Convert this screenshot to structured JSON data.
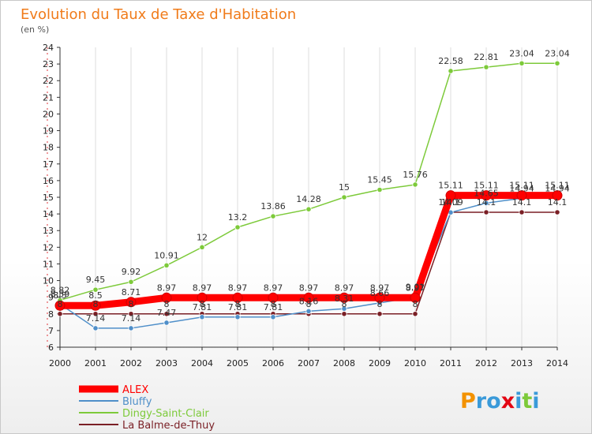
{
  "chart_data": {
    "type": "line",
    "title": "Evolution du Taux de Taxe d'Habitation",
    "subtitle": "(en %)",
    "x": [
      "2000",
      "2001",
      "2002",
      "2003",
      "2004",
      "2005",
      "2006",
      "2007",
      "2008",
      "2009",
      "2010",
      "2011",
      "2012",
      "2013",
      "2014"
    ],
    "ylim": [
      6,
      24
    ],
    "yticks": [
      6,
      7,
      8,
      9,
      10,
      11,
      12,
      13,
      14,
      15,
      16,
      17,
      18,
      19,
      20,
      21,
      22,
      23,
      24
    ],
    "grid": "vertical",
    "legend_position": "bottom-left",
    "series": [
      {
        "name": "ALEX",
        "color": "#ff0000",
        "values": [
          8.5,
          8.5,
          8.71,
          8.97,
          8.97,
          8.97,
          8.97,
          8.97,
          8.97,
          8.97,
          8.97,
          15.11,
          15.11,
          15.11,
          15.11
        ],
        "labels": [
          "8.5",
          "8.5",
          "8.71",
          "8.97",
          "8.97",
          "8.97",
          "8.97",
          "8.97",
          "8.97",
          "8.97",
          "8.97",
          "15.11",
          "15.11",
          "15.11",
          "15.11"
        ]
      },
      {
        "name": "Bluffy",
        "color": "#4f8fc9",
        "values": [
          8.59,
          7.14,
          7.14,
          7.47,
          7.81,
          7.81,
          7.81,
          8.16,
          8.31,
          8.66,
          9.01,
          14.09,
          14.65,
          14.94,
          14.94
        ],
        "labels": [
          "8.59",
          "7.14",
          "7.14",
          "7.47",
          "7.81",
          "7.81",
          "7.81",
          "8.16",
          "8.31",
          "8.66",
          "9.01",
          "14.09",
          "14.65",
          "14.94",
          "14.94"
        ]
      },
      {
        "name": "Dingy-Saint-Clair",
        "color": "#7dca3a",
        "values": [
          8.82,
          9.45,
          9.92,
          10.91,
          12,
          13.2,
          13.86,
          14.28,
          15,
          15.45,
          15.76,
          22.58,
          22.81,
          23.04,
          23.04
        ],
        "labels": [
          "8.82",
          "9.45",
          "9.92",
          "10.91",
          "12",
          "13.2",
          "13.86",
          "14.28",
          "15",
          "15.45",
          "15.76",
          "22.58",
          "22.81",
          "23.04",
          "23.04"
        ]
      },
      {
        "name": "La Balme-de-Thuy",
        "color": "#7a1f25",
        "values": [
          8,
          8,
          8,
          8,
          8,
          8,
          8,
          8,
          8,
          8,
          8,
          14.1,
          14.1,
          14.1,
          14.1
        ],
        "labels": [
          "8",
          "8",
          "8",
          "8",
          "8",
          "8",
          "8",
          "8",
          "8",
          "8",
          "8",
          "14.1",
          "14.1",
          "14.1",
          "14.1"
        ]
      }
    ]
  },
  "legend": {
    "items": [
      {
        "name": "ALEX",
        "color": "#ff0000"
      },
      {
        "name": "Bluffy",
        "color": "#4f8fc9"
      },
      {
        "name": "Dingy-Saint-Clair",
        "color": "#7dca3a"
      },
      {
        "name": "La Balme-de-Thuy",
        "color": "#7a1f25"
      }
    ]
  },
  "brand": {
    "letters": [
      "P",
      "r",
      "o",
      "x",
      "i",
      "t",
      "i"
    ],
    "colors": [
      "#f39200",
      "#3a9ad9",
      "#3a9ad9",
      "#e30613",
      "#3a9ad9",
      "#7dca3a",
      "#3a9ad9"
    ]
  }
}
